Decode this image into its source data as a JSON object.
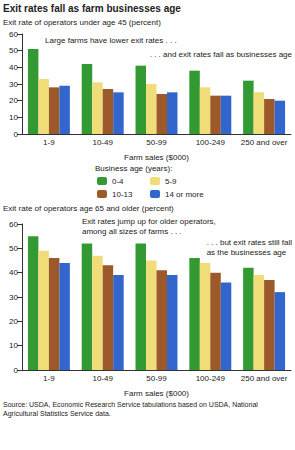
{
  "title": "Exit rates fall as farm businesses age",
  "legend_title": "Business age (years):",
  "source": "Source: USDA, Economic Research Service tabulations based on USDA, National Agricultural Statistics Service data.",
  "chart_data": [
    {
      "type": "bar",
      "title": "Exit rate of operators under age 45 (percent)",
      "xlabel": "Farm sales ($000)",
      "categories": [
        "1-9",
        "10-49",
        "50-99",
        "100-249",
        "250 and over"
      ],
      "series": [
        {
          "name": "0-4",
          "color": "#339933",
          "values": [
            51,
            42,
            41,
            38,
            32
          ]
        },
        {
          "name": "5-9",
          "color": "#f0dc78",
          "values": [
            33,
            31,
            30,
            28,
            25
          ]
        },
        {
          "name": "10-13",
          "color": "#9c5a2a",
          "values": [
            28,
            27,
            24,
            23,
            21
          ]
        },
        {
          "name": "14 or more",
          "color": "#3366cc",
          "values": [
            29,
            25,
            25,
            23,
            20
          ]
        }
      ],
      "ylim": [
        0,
        60
      ],
      "yticks": [
        0,
        10,
        20,
        30,
        40,
        50,
        60
      ],
      "grid": false,
      "annotations": [
        [
          "Large farms have lower exit rates . . ."
        ],
        [
          ". . . and exit rates fall as businesses age"
        ]
      ]
    },
    {
      "type": "bar",
      "title": "Exit rate of operators age 65 and older (percent)",
      "xlabel": "Farm sales ($000)",
      "categories": [
        "1-9",
        "10-49",
        "50-99",
        "100-249",
        "250 and over"
      ],
      "series": [
        {
          "name": "0-4",
          "color": "#339933",
          "values": [
            55,
            52,
            52,
            46,
            42
          ]
        },
        {
          "name": "5-9",
          "color": "#f0dc78",
          "values": [
            49,
            47,
            45,
            44,
            39
          ]
        },
        {
          "name": "10-13",
          "color": "#9c5a2a",
          "values": [
            46,
            43,
            41,
            40,
            37
          ]
        },
        {
          "name": "14 or more",
          "color": "#3366cc",
          "values": [
            44,
            39,
            39,
            36,
            32
          ]
        }
      ],
      "ylim": [
        0,
        60
      ],
      "yticks": [
        0,
        10,
        20,
        30,
        40,
        50,
        60
      ],
      "grid": false,
      "annotations": [
        [
          "Exit rates jump up for older operators,",
          "among all sizes of farms . . ."
        ],
        [
          ". . . but exit rates still fall",
          "as the businesses age"
        ]
      ]
    }
  ]
}
